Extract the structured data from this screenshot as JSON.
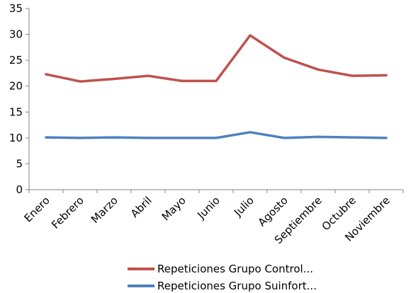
{
  "chart_data": {
    "type": "line",
    "categories": [
      "Enero",
      "Febrero",
      "Marzo",
      "Abril",
      "Mayo",
      "Junio",
      "Julio",
      "Agosto",
      "Septiembre",
      "Octubre",
      "Noviembre"
    ],
    "series": [
      {
        "name": "Repeticiones Grupo Control...",
        "color": "#c0504d",
        "values": [
          22.3,
          20.9,
          21.4,
          22.0,
          21.0,
          21.0,
          29.8,
          25.5,
          23.2,
          22.0,
          22.1
        ]
      },
      {
        "name": "Repeticiones Grupo Suinfort...",
        "color": "#4f81bd",
        "values": [
          10.1,
          10.0,
          10.1,
          10.0,
          10.0,
          10.0,
          11.1,
          10.0,
          10.2,
          10.1,
          10.0
        ]
      }
    ],
    "ylim": [
      0,
      35
    ],
    "yticks": [
      "0",
      "5",
      "10",
      "15",
      "20",
      "25",
      "30",
      "35"
    ],
    "title": "",
    "xlabel": "",
    "ylabel": "",
    "grid": false,
    "legend_position": "bottom-right"
  }
}
